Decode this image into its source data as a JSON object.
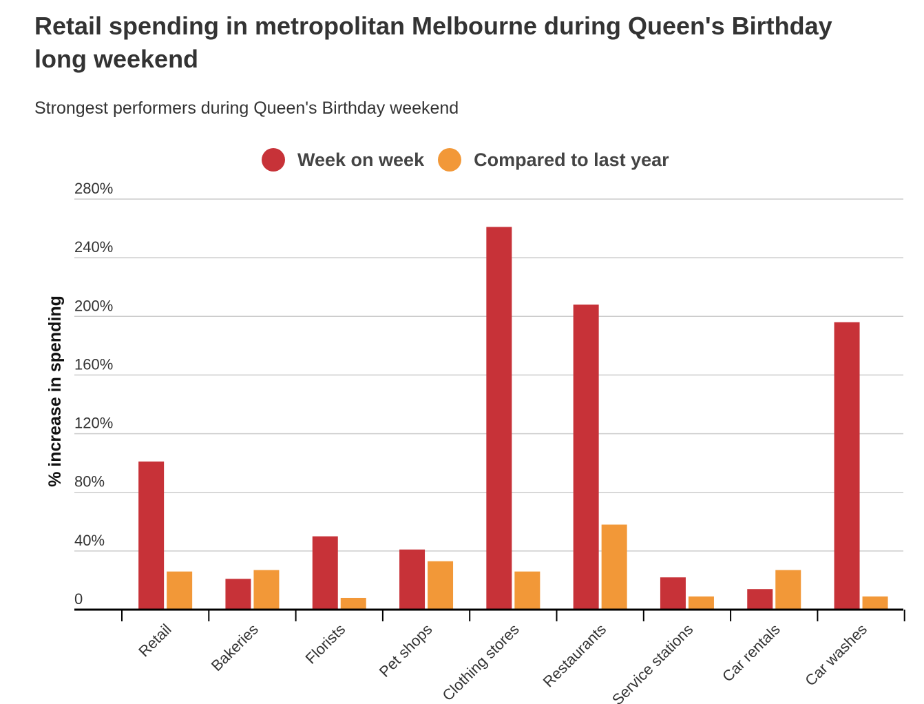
{
  "title": "Retail spending in metropolitan Melbourne during Queen's Birthday long weekend",
  "subtitle": "Strongest performers during Queen's Birthday weekend",
  "colors": {
    "week_on_week": "#c73238",
    "compared_to_last_year": "#f29838",
    "grid": "#cccccc",
    "axis": "#000000",
    "text": "#333333"
  },
  "chart_data": {
    "type": "bar",
    "title": "Retail spending in metropolitan Melbourne during Queen's Birthday long weekend",
    "subtitle": "Strongest performers during Queen's Birthday weekend",
    "xlabel": "",
    "ylabel": "% increase in spending",
    "ylim": [
      0,
      280
    ],
    "yticks": [
      0,
      40,
      80,
      120,
      160,
      200,
      240,
      280
    ],
    "ytick_labels": [
      "0",
      "40%",
      "80%",
      "120%",
      "160%",
      "200%",
      "240%",
      "280%"
    ],
    "grid": true,
    "legend_position": "top",
    "categories": [
      "Retail",
      "Bakeries",
      "Florists",
      "Pet shops",
      "Clothing stores",
      "Restaurants",
      "Service stations",
      "Car rentals",
      "Car washes"
    ],
    "series": [
      {
        "name": "Week on week",
        "values": [
          101,
          21,
          50,
          41,
          261,
          208,
          22,
          14,
          196
        ]
      },
      {
        "name": "Compared to last year",
        "values": [
          26,
          27,
          8,
          33,
          26,
          58,
          9,
          27,
          9
        ]
      }
    ]
  }
}
